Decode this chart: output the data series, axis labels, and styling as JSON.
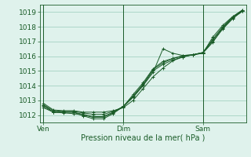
{
  "bg_color": "#dff2ec",
  "grid_color": "#99ccbb",
  "line_color": "#1a5c28",
  "xlabel": "Pression niveau de la mer( hPa )",
  "x_ticks_pos": [
    0,
    48,
    96
  ],
  "x_tick_labels": [
    "Ven",
    "Dim",
    "Sam"
  ],
  "ylim": [
    1011.5,
    1019.5
  ],
  "xlim": [
    -2,
    122
  ],
  "y_ticks": [
    1012,
    1013,
    1014,
    1015,
    1016,
    1017,
    1018,
    1019
  ],
  "vlines_x": [
    0,
    48,
    96
  ],
  "series": [
    [
      0,
      1012.8,
      6,
      1012.35,
      12,
      1012.3,
      18,
      1012.3,
      24,
      1012.2,
      30,
      1012.2,
      36,
      1012.2,
      42,
      1012.3,
      48,
      1012.5,
      54,
      1013.0,
      60,
      1013.8,
      66,
      1014.6,
      72,
      1015.2,
      78,
      1015.7,
      84,
      1015.95,
      90,
      1016.1,
      96,
      1016.25,
      102,
      1017.0,
      108,
      1017.85,
      114,
      1018.55,
      120,
      1019.1
    ],
    [
      0,
      1012.5,
      6,
      1012.2,
      12,
      1012.2,
      18,
      1012.2,
      24,
      1011.95,
      30,
      1011.75,
      36,
      1011.75,
      42,
      1012.1,
      48,
      1012.6,
      54,
      1013.2,
      60,
      1014.0,
      66,
      1014.9,
      72,
      1016.5,
      78,
      1016.2,
      84,
      1016.05,
      90,
      1016.1,
      96,
      1016.2,
      102,
      1017.3,
      108,
      1018.1,
      114,
      1018.7,
      120,
      1019.15
    ],
    [
      0,
      1012.7,
      6,
      1012.2,
      12,
      1012.2,
      18,
      1012.2,
      24,
      1012.05,
      30,
      1011.9,
      36,
      1011.9,
      42,
      1012.2,
      48,
      1012.6,
      54,
      1013.3,
      60,
      1014.1,
      66,
      1015.1,
      72,
      1015.55,
      78,
      1015.85,
      84,
      1016.0,
      90,
      1016.1,
      96,
      1016.25,
      102,
      1017.1,
      108,
      1017.95,
      114,
      1018.65,
      120,
      1019.1
    ],
    [
      0,
      1012.6,
      6,
      1012.2,
      12,
      1012.15,
      18,
      1012.1,
      24,
      1012.0,
      30,
      1011.85,
      36,
      1011.85,
      42,
      1012.15,
      48,
      1012.55,
      54,
      1013.25,
      60,
      1014.05,
      66,
      1015.0,
      72,
      1015.45,
      78,
      1015.75,
      84,
      1015.95,
      90,
      1016.1,
      96,
      1016.2,
      102,
      1016.95,
      108,
      1017.9,
      114,
      1018.6,
      120,
      1019.05
    ],
    [
      0,
      1012.7,
      6,
      1012.3,
      12,
      1012.25,
      18,
      1012.25,
      24,
      1012.15,
      30,
      1012.05,
      36,
      1012.05,
      42,
      1012.25,
      48,
      1012.55,
      54,
      1013.4,
      60,
      1014.2,
      66,
      1015.15,
      72,
      1015.65,
      78,
      1015.85,
      84,
      1016.05,
      90,
      1016.1,
      96,
      1016.25,
      102,
      1017.15,
      108,
      1018.0,
      114,
      1018.65,
      120,
      1019.15
    ]
  ]
}
